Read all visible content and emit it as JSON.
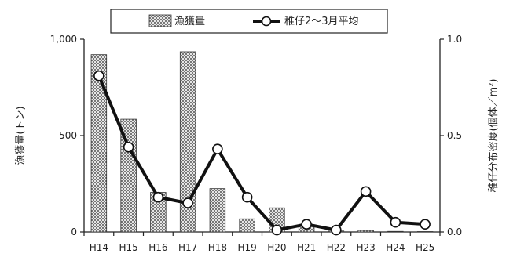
{
  "chart_data": {
    "type": "bar+line",
    "categories": [
      "H14",
      "H15",
      "H16",
      "H17",
      "H18",
      "H19",
      "H20",
      "H21",
      "H22",
      "H23",
      "H24",
      "H25"
    ],
    "series": [
      {
        "name": "漁獲量",
        "type": "bar",
        "axis": "left",
        "values": [
          920,
          585,
          205,
          935,
          225,
          68,
          125,
          30,
          5,
          8,
          3,
          2
        ]
      },
      {
        "name": "稚仔2～3月平均",
        "type": "line",
        "axis": "right",
        "values": [
          0.81,
          0.44,
          0.18,
          0.15,
          0.43,
          0.18,
          0.01,
          0.04,
          0.01,
          0.21,
          0.05,
          0.04
        ]
      }
    ],
    "y_left": {
      "label": "漁獲量(トン)",
      "ylim": [
        0,
        1000
      ],
      "ticks": [
        0,
        500,
        1000
      ],
      "tick_labels": [
        "0",
        "500",
        "1,000"
      ]
    },
    "y_right": {
      "label": "稚仔分布密度(個体／m²)",
      "ylim": [
        0,
        1.0
      ],
      "ticks": [
        0,
        0.5,
        1.0
      ],
      "tick_labels": [
        "0.0",
        "0.5",
        "1.0"
      ]
    },
    "xlabel": "",
    "grid": false,
    "legend_position": "top-center",
    "colors": {
      "bar_fill": "#c8c8c8",
      "bar_stroke": "#333333",
      "line": "#111111",
      "marker_fill": "#ffffff"
    }
  }
}
